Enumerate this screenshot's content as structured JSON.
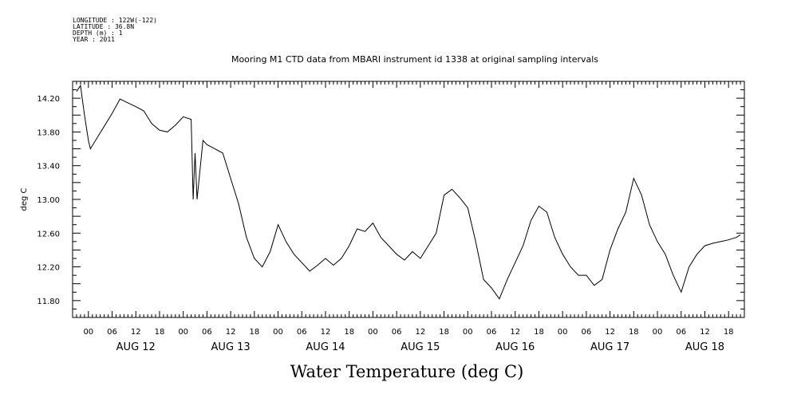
{
  "header": {
    "meta_lines": [
      "LONGITUDE : 122W(-122)",
      "LATITUDE : 36.8N",
      "DEPTH (m) : 1",
      "YEAR : 2011"
    ],
    "title": "Mooring M1 CTD data from MBARI instrument id 1338 at original sampling intervals"
  },
  "chart_data": {
    "type": "line",
    "title": "Mooring M1 CTD data from MBARI instrument id 1338 at original sampling intervals",
    "xlabel": "Water Temperature (deg C)",
    "ylabel": "deg C",
    "ylim": [
      11.6,
      14.4
    ],
    "xlim": [
      "2011-08-11T20:00",
      "2011-08-18T22:00"
    ],
    "y_ticks": [
      "14.20",
      "13.80",
      "13.40",
      "13.00",
      "12.60",
      "12.20",
      "11.80"
    ],
    "x_hour_labels": [
      "00",
      "06",
      "12",
      "18",
      "00",
      "06",
      "12",
      "18",
      "00",
      "06",
      "12",
      "18",
      "00",
      "06",
      "12",
      "18",
      "00",
      "06",
      "12",
      "18",
      "00",
      "06",
      "12",
      "18",
      "00",
      "06",
      "12",
      "18"
    ],
    "x_day_labels": [
      "AUG 12",
      "AUG 13",
      "AUG 14",
      "AUG 15",
      "AUG 16",
      "AUG 17",
      "AUG 18"
    ],
    "series": [
      {
        "color": "#000000",
        "x": [
          "2011-08-11T21:00",
          "2011-08-11T22:00",
          "2011-08-11T23:00",
          "2011-08-12T00:00",
          "2011-08-12T00:30",
          "2011-08-12T06:00",
          "2011-08-12T08:00",
          "2011-08-12T12:00",
          "2011-08-12T14:00",
          "2011-08-12T16:00",
          "2011-08-12T18:00",
          "2011-08-12T20:00",
          "2011-08-12T22:00",
          "2011-08-13T00:00",
          "2011-08-13T02:00",
          "2011-08-13T02:30",
          "2011-08-13T03:00",
          "2011-08-13T03:30",
          "2011-08-13T05:00",
          "2011-08-13T06:00",
          "2011-08-13T08:00",
          "2011-08-13T10:00",
          "2011-08-13T12:00",
          "2011-08-13T14:00",
          "2011-08-13T16:00",
          "2011-08-13T18:00",
          "2011-08-13T20:00",
          "2011-08-13T22:00",
          "2011-08-14T00:00",
          "2011-08-14T02:00",
          "2011-08-14T04:00",
          "2011-08-14T08:00",
          "2011-08-14T10:00",
          "2011-08-14T12:00",
          "2011-08-14T14:00",
          "2011-08-14T16:00",
          "2011-08-14T18:00",
          "2011-08-14T20:00",
          "2011-08-14T22:00",
          "2011-08-15T00:00",
          "2011-08-15T02:00",
          "2011-08-15T04:00",
          "2011-08-15T06:00",
          "2011-08-15T08:00",
          "2011-08-15T10:00",
          "2011-08-15T12:00",
          "2011-08-15T14:00",
          "2011-08-15T16:00",
          "2011-08-15T18:00",
          "2011-08-15T20:00",
          "2011-08-15T22:00",
          "2011-08-16T00:00",
          "2011-08-16T02:00",
          "2011-08-16T04:00",
          "2011-08-16T06:00",
          "2011-08-16T08:00",
          "2011-08-16T10:00",
          "2011-08-16T12:00",
          "2011-08-16T14:00",
          "2011-08-16T16:00",
          "2011-08-16T18:00",
          "2011-08-16T20:00",
          "2011-08-16T22:00",
          "2011-08-17T00:00",
          "2011-08-17T02:00",
          "2011-08-17T04:00",
          "2011-08-17T06:00",
          "2011-08-17T08:00",
          "2011-08-17T10:00",
          "2011-08-17T12:00",
          "2011-08-17T14:00",
          "2011-08-17T16:00",
          "2011-08-17T18:00",
          "2011-08-17T20:00",
          "2011-08-17T22:00",
          "2011-08-18T00:00",
          "2011-08-18T02:00",
          "2011-08-18T04:00",
          "2011-08-18T06:00",
          "2011-08-18T08:00",
          "2011-08-18T10:00",
          "2011-08-18T12:00",
          "2011-08-18T14:00",
          "2011-08-18T16:00",
          "2011-08-18T18:00",
          "2011-08-18T20:00",
          "2011-08-18T21:00"
        ],
        "y": [
          14.28,
          14.35,
          14.0,
          13.7,
          13.6,
          14.02,
          14.19,
          14.1,
          14.05,
          13.9,
          13.82,
          13.8,
          13.88,
          13.98,
          13.95,
          13.0,
          13.55,
          13.0,
          13.7,
          13.65,
          13.6,
          13.55,
          13.25,
          12.95,
          12.55,
          12.3,
          12.2,
          12.38,
          12.7,
          12.5,
          12.35,
          12.15,
          12.22,
          12.3,
          12.22,
          12.3,
          12.45,
          12.65,
          12.62,
          12.72,
          12.55,
          12.45,
          12.35,
          12.28,
          12.38,
          12.3,
          12.45,
          12.6,
          13.05,
          13.12,
          13.02,
          12.9,
          12.5,
          12.05,
          11.95,
          11.82,
          12.05,
          12.25,
          12.45,
          12.75,
          12.92,
          12.85,
          12.55,
          12.35,
          12.2,
          12.1,
          12.1,
          11.98,
          12.05,
          12.4,
          12.65,
          12.85,
          13.25,
          13.05,
          12.7,
          12.5,
          12.35,
          12.1,
          11.9,
          12.2,
          12.35,
          12.45,
          12.48,
          12.5,
          12.52,
          12.55,
          12.58
        ]
      }
    ]
  }
}
